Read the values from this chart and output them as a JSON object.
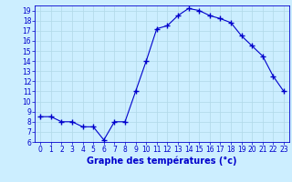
{
  "hours": [
    0,
    1,
    2,
    3,
    4,
    5,
    6,
    7,
    8,
    9,
    10,
    11,
    12,
    13,
    14,
    15,
    16,
    17,
    18,
    19,
    20,
    21,
    22,
    23
  ],
  "temps": [
    8.5,
    8.5,
    8.0,
    8.0,
    7.5,
    7.5,
    6.2,
    8.0,
    8.0,
    11.0,
    14.0,
    17.2,
    17.5,
    18.5,
    19.2,
    19.0,
    18.5,
    18.2,
    17.8,
    16.5,
    15.5,
    14.5,
    12.5,
    11.0
  ],
  "line_color": "#0000cc",
  "marker_color": "#0000cc",
  "bg_color": "#cceeff",
  "grid_color": "#b0d8e8",
  "xlabel": "Graphe des températures (°c)",
  "xlabel_color": "#0000cc",
  "ylim": [
    6,
    19.5
  ],
  "xlim": [
    -0.5,
    23.5
  ],
  "yticks": [
    6,
    7,
    8,
    9,
    10,
    11,
    12,
    13,
    14,
    15,
    16,
    17,
    18,
    19
  ],
  "xticks": [
    0,
    1,
    2,
    3,
    4,
    5,
    6,
    7,
    8,
    9,
    10,
    11,
    12,
    13,
    14,
    15,
    16,
    17,
    18,
    19,
    20,
    21,
    22,
    23
  ],
  "tick_color": "#0000cc",
  "axis_color": "#0000cc",
  "tick_fontsize": 5.5,
  "xlabel_fontsize": 7
}
